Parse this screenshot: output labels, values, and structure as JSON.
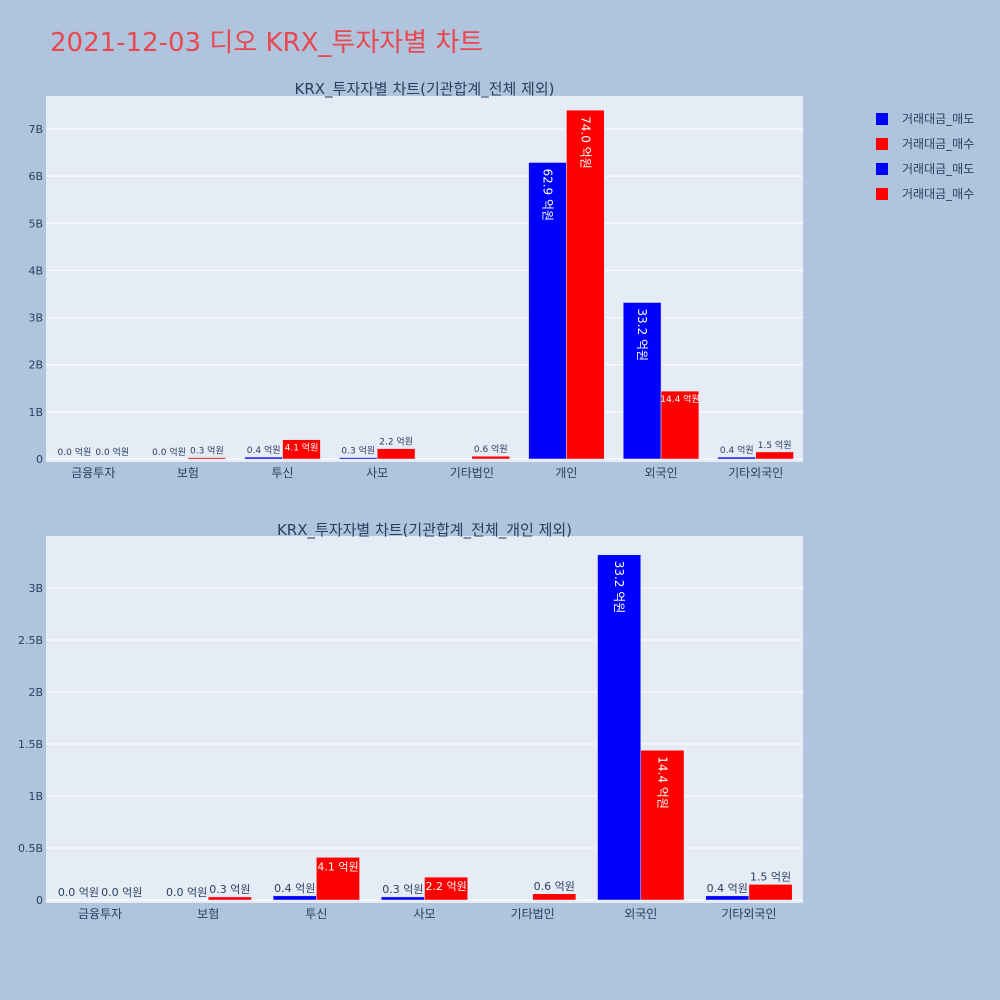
{
  "page_title": "2021-12-03 디오 KRX_투자자별 차트",
  "legend": [
    {
      "name": "거래대금_매도",
      "color": "#0000ff"
    },
    {
      "name": "거래대금_매수",
      "color": "#ff0000"
    },
    {
      "name": "거래대금_매도",
      "color": "#0000ff"
    },
    {
      "name": "거래대금_매수",
      "color": "#ff0000"
    }
  ],
  "chart_data": [
    {
      "type": "bar",
      "title": "KRX_투자자별 차트(기관합계_전체 제외)",
      "categories": [
        "금융투자",
        "보험",
        "투신",
        "사모",
        "기타법인",
        "개인",
        "외국인",
        "기타외국인"
      ],
      "series": [
        {
          "name": "거래대금_매도",
          "color": "#0000ff",
          "values": [
            0,
            0,
            0.04,
            0.03,
            0,
            6.29,
            3.32,
            0.04
          ],
          "labels": [
            "0.0 억원",
            "0.0 억원",
            "0.4 억원",
            "0.3 억원",
            "",
            "62.9 억원",
            "33.2 억원",
            "0.4 억원"
          ]
        },
        {
          "name": "거래대금_매수",
          "color": "#ff0000",
          "values": [
            0,
            0.03,
            0.41,
            0.22,
            0.06,
            7.4,
            1.44,
            0.15
          ],
          "labels": [
            "0.0 억원",
            "0.3 억원",
            "4.1 억원",
            "2.2 억원",
            "0.6 억원",
            "74.0 억원",
            "14.4 억원",
            "1.5 억원"
          ]
        }
      ],
      "ylim": [
        0,
        7.7
      ],
      "yticks": [
        0,
        1,
        2,
        3,
        4,
        5,
        6,
        7
      ],
      "ytick_labels": [
        "0",
        "1B",
        "2B",
        "3B",
        "4B",
        "5B",
        "6B",
        "7B"
      ],
      "grid": true
    },
    {
      "type": "bar",
      "title": "KRX_투자자별 차트(기관합계_전체_개인 제외)",
      "categories": [
        "금융투자",
        "보험",
        "투신",
        "사모",
        "기타법인",
        "외국인",
        "기타외국인"
      ],
      "series": [
        {
          "name": "거래대금_매도",
          "color": "#0000ff",
          "values": [
            0,
            0,
            0.04,
            0.03,
            0,
            3.32,
            0.04
          ],
          "labels": [
            "0.0 억원",
            "0.0 억원",
            "0.4 억원",
            "0.3 억원",
            "",
            "33.2 억원",
            "0.4 억원"
          ]
        },
        {
          "name": "거래대금_매수",
          "color": "#ff0000",
          "values": [
            0,
            0.03,
            0.41,
            0.22,
            0.06,
            1.44,
            0.15
          ],
          "labels": [
            "0.0 억원",
            "0.3 억원",
            "4.1 억원",
            "2.2 억원",
            "0.6 억원",
            "14.4 억원",
            "1.5 억원"
          ]
        }
      ],
      "ylim": [
        0,
        3.5
      ],
      "yticks": [
        0,
        0.5,
        1,
        1.5,
        2,
        2.5,
        3
      ],
      "ytick_labels": [
        "0",
        "0.5B",
        "1B",
        "1.5B",
        "2B",
        "2.5B",
        "3B"
      ],
      "grid": true
    }
  ]
}
